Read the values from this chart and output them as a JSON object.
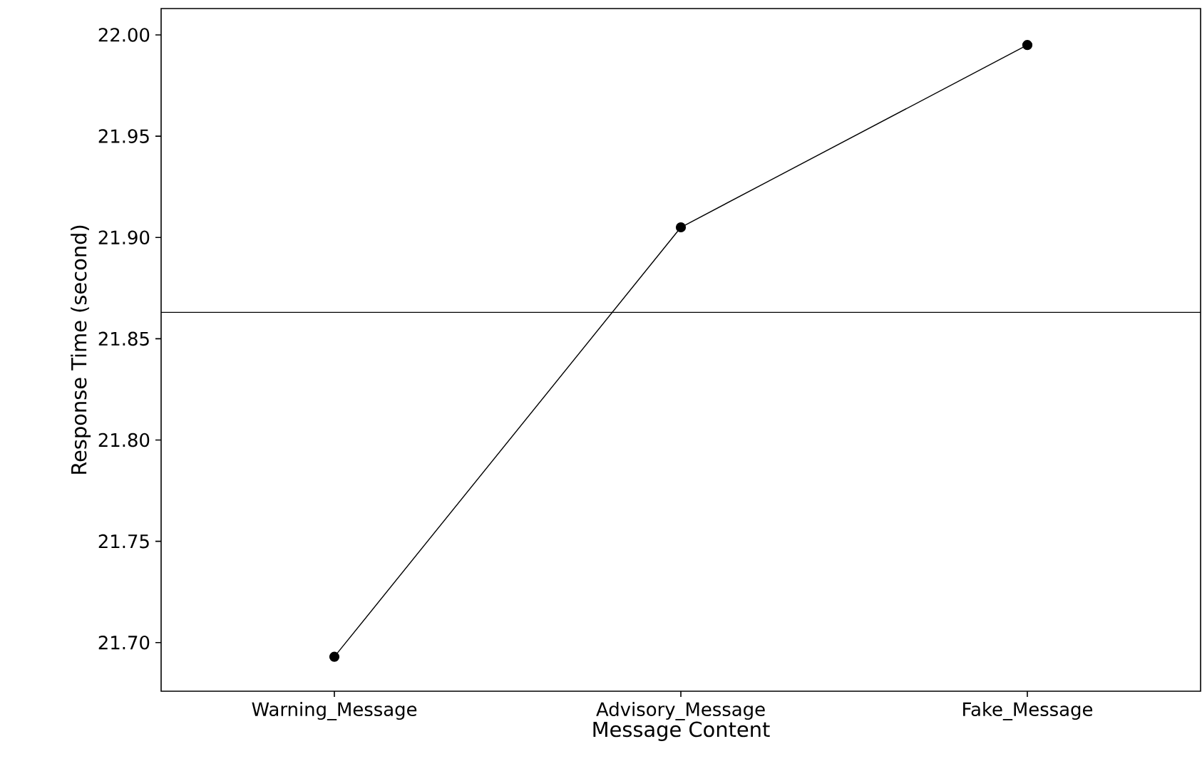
{
  "chart_data": {
    "type": "line",
    "xlabel": "Message Content",
    "ylabel": "Response Time (second)",
    "categories": [
      "Warning_Message",
      "Advisory_Message",
      "Fake_Message"
    ],
    "series": [
      {
        "color": "#000000",
        "values": [
          21.693,
          21.905,
          21.995
        ]
      }
    ],
    "ylim": [
      21.676,
      22.013
    ],
    "yticks": [
      {
        "value": 21.7,
        "label": "21.70"
      },
      {
        "value": 21.75,
        "label": "21.75"
      },
      {
        "value": 21.8,
        "label": "21.80"
      },
      {
        "value": 21.85,
        "label": "21.85"
      },
      {
        "value": 21.9,
        "label": "21.90"
      },
      {
        "value": 21.95,
        "label": "21.95"
      },
      {
        "value": 22.0,
        "label": "22.00"
      }
    ],
    "ref_lines": [
      {
        "axis": "y",
        "value": 21.863,
        "color": "#000000"
      }
    ],
    "marker": "circle",
    "line_style": "solid",
    "grid": false
  }
}
